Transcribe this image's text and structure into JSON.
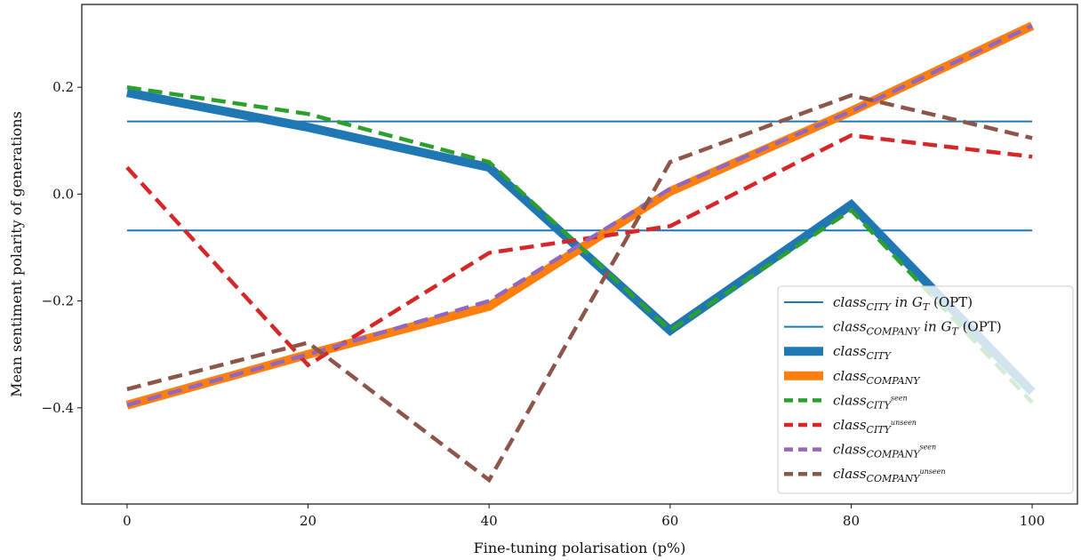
{
  "chart_data": {
    "type": "line",
    "xlabel": "Fine-tuning polarisation (p%)",
    "ylabel": "Mean sentiment polarity of generations",
    "xlim": [
      -5,
      105
    ],
    "ylim": [
      -0.58,
      0.355
    ],
    "x_ticks": [
      0,
      20,
      40,
      60,
      80,
      100
    ],
    "y_ticks": [
      -0.4,
      -0.2,
      0.0,
      0.2
    ],
    "x_tick_labels": [
      "0",
      "20",
      "40",
      "60",
      "80",
      "100"
    ],
    "y_tick_labels": [
      "−0.4",
      "−0.2",
      "0.0",
      "0.2"
    ],
    "legend_position": "lower-right",
    "grid": false,
    "hlines": [
      {
        "legend_main": "class",
        "legend_sub": "CITY",
        "legend_tail": " in G",
        "legend_tail_sub": "T",
        "legend_plain": " (OPT)",
        "y": 0.136,
        "color": "#1f77b4"
      },
      {
        "legend_main": "class",
        "legend_sub": "COMPANY",
        "legend_tail": " in G",
        "legend_tail_sub": "T",
        "legend_plain": " (OPT)",
        "y": -0.068,
        "color": "#1f77b4"
      }
    ],
    "series": [
      {
        "legend_main": "class",
        "legend_sub": "CITY",
        "legend_sup": "",
        "color": "#1f77b4",
        "style": "solid",
        "width": 10,
        "x": [
          0,
          20,
          40,
          60,
          80,
          100
        ],
        "y": [
          0.19,
          0.125,
          0.05,
          -0.255,
          -0.02,
          -0.37
        ]
      },
      {
        "legend_main": "class",
        "legend_sub": "COMPANY",
        "legend_sup": "",
        "color": "#ff7f0e",
        "style": "solid",
        "width": 10,
        "x": [
          0,
          20,
          40,
          60,
          80,
          100
        ],
        "y": [
          -0.395,
          -0.3,
          -0.21,
          0.005,
          0.155,
          0.315
        ]
      },
      {
        "legend_main": "class",
        "legend_sub": "CITY",
        "legend_sup": "seen",
        "color": "#2ca02c",
        "style": "dashed",
        "width": 4.5,
        "x": [
          0,
          20,
          40,
          60,
          80,
          100
        ],
        "y": [
          0.2,
          0.15,
          0.06,
          -0.255,
          -0.03,
          -0.39
        ]
      },
      {
        "legend_main": "class",
        "legend_sub": "CITY",
        "legend_sup": "unseen",
        "color": "#d62728",
        "style": "dashed",
        "width": 4.5,
        "x": [
          0,
          20,
          40,
          60,
          80,
          100
        ],
        "y": [
          0.05,
          -0.32,
          -0.11,
          -0.06,
          0.11,
          0.07
        ]
      },
      {
        "legend_main": "class",
        "legend_sub": "COMPANY",
        "legend_sup": "seen",
        "color": "#9467bd",
        "style": "dashed",
        "width": 4.5,
        "x": [
          0,
          20,
          40,
          60,
          80,
          100
        ],
        "y": [
          -0.395,
          -0.3,
          -0.2,
          0.01,
          0.155,
          0.315
        ]
      },
      {
        "legend_main": "class",
        "legend_sub": "COMPANY",
        "legend_sup": "unseen",
        "color": "#8c564b",
        "style": "dashed",
        "width": 4.5,
        "x": [
          0,
          20,
          40,
          60,
          80,
          100
        ],
        "y": [
          -0.365,
          -0.278,
          -0.535,
          0.06,
          0.185,
          0.105
        ]
      }
    ]
  }
}
